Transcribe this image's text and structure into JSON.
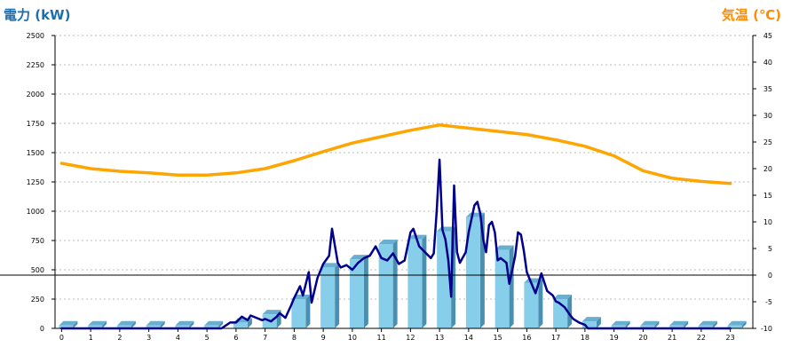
{
  "chart_data": {
    "type": "bar",
    "title_left": "電力 (kW)",
    "title_right": "気温 (℃)",
    "categories": [
      "0",
      "1",
      "2",
      "3",
      "4",
      "5",
      "6",
      "7",
      "8",
      "9",
      "10",
      "11",
      "12",
      "13",
      "14",
      "15",
      "16",
      "17",
      "18",
      "19",
      "20",
      "21",
      "22",
      "23"
    ],
    "y_left": {
      "min": 0,
      "max": 2500,
      "ticks": [
        "0",
        "250",
        "500",
        "750",
        "1000",
        "1250",
        "1500",
        "1750",
        "2000",
        "2250",
        "2500"
      ]
    },
    "y_right": {
      "min": -10,
      "max": 45,
      "ticks": [
        "-10",
        "-5",
        "0",
        "5",
        "10",
        "15",
        "20",
        "25",
        "30",
        "35",
        "40",
        "45"
      ]
    },
    "grid": true,
    "series": [
      {
        "type": "bar",
        "axis": "left",
        "color": "#87ceeb",
        "values": [
          25,
          25,
          25,
          25,
          25,
          25,
          50,
          120,
          250,
          520,
          590,
          720,
          760,
          830,
          950,
          670,
          390,
          250,
          60,
          25,
          25,
          25,
          25,
          25
        ]
      },
      {
        "type": "line",
        "axis": "left",
        "color": "#00008b",
        "x": [
          0,
          1,
          2,
          3,
          4,
          5,
          5.5,
          5.8,
          6,
          6.2,
          6.4,
          6.5,
          6.7,
          6.9,
          7,
          7.2,
          7.4,
          7.5,
          7.7,
          7.9,
          8,
          8.2,
          8.3,
          8.5,
          8.6,
          8.8,
          9,
          9.2,
          9.3,
          9.5,
          9.6,
          9.8,
          10,
          10.2,
          10.4,
          10.6,
          10.8,
          11,
          11.2,
          11.4,
          11.6,
          11.8,
          12,
          12.1,
          12.3,
          12.5,
          12.7,
          12.8,
          12.9,
          13,
          13.1,
          13.2,
          13.3,
          13.4,
          13.5,
          13.6,
          13.7,
          13.9,
          14,
          14.2,
          14.3,
          14.4,
          14.5,
          14.6,
          14.7,
          14.8,
          14.9,
          15,
          15.1,
          15.3,
          15.4,
          15.6,
          15.7,
          15.8,
          15.9,
          16,
          16.2,
          16.3,
          16.4,
          16.5,
          16.7,
          16.9,
          17,
          17.1,
          17.3,
          17.5,
          17.6,
          17.8,
          18,
          18.1,
          18.5,
          19,
          20,
          21,
          22,
          23
        ],
        "values": [
          0,
          0,
          0,
          0,
          0,
          0,
          0,
          50,
          50,
          100,
          70,
          110,
          90,
          70,
          80,
          60,
          100,
          130,
          90,
          200,
          260,
          360,
          280,
          480,
          220,
          430,
          550,
          620,
          850,
          560,
          520,
          540,
          500,
          560,
          600,
          620,
          700,
          600,
          580,
          640,
          550,
          580,
          820,
          850,
          700,
          650,
          600,
          640,
          1000,
          1440,
          840,
          760,
          580,
          270,
          1220,
          650,
          560,
          650,
          820,
          1050,
          1080,
          980,
          760,
          650,
          880,
          910,
          820,
          580,
          600,
          560,
          380,
          620,
          820,
          800,
          660,
          480,
          360,
          300,
          380,
          470,
          320,
          280,
          230,
          220,
          180,
          110,
          80,
          50,
          30,
          0,
          0,
          0,
          0,
          0,
          0,
          0
        ]
      },
      {
        "type": "line",
        "axis": "right",
        "color": "#ffa500",
        "x": [
          0,
          1,
          2,
          3,
          4,
          5,
          6,
          7,
          8,
          9,
          10,
          11,
          12,
          13,
          14,
          15,
          16,
          17,
          18,
          19,
          20,
          21,
          22,
          23
        ],
        "values": [
          21,
          20,
          19.5,
          19.2,
          18.8,
          18.8,
          19.2,
          20,
          21.5,
          23.2,
          24.8,
          26,
          27.2,
          28.2,
          27.6,
          27,
          26.4,
          25.4,
          24.2,
          22.4,
          19.6,
          18.2,
          17.6,
          17.2
        ]
      }
    ]
  }
}
